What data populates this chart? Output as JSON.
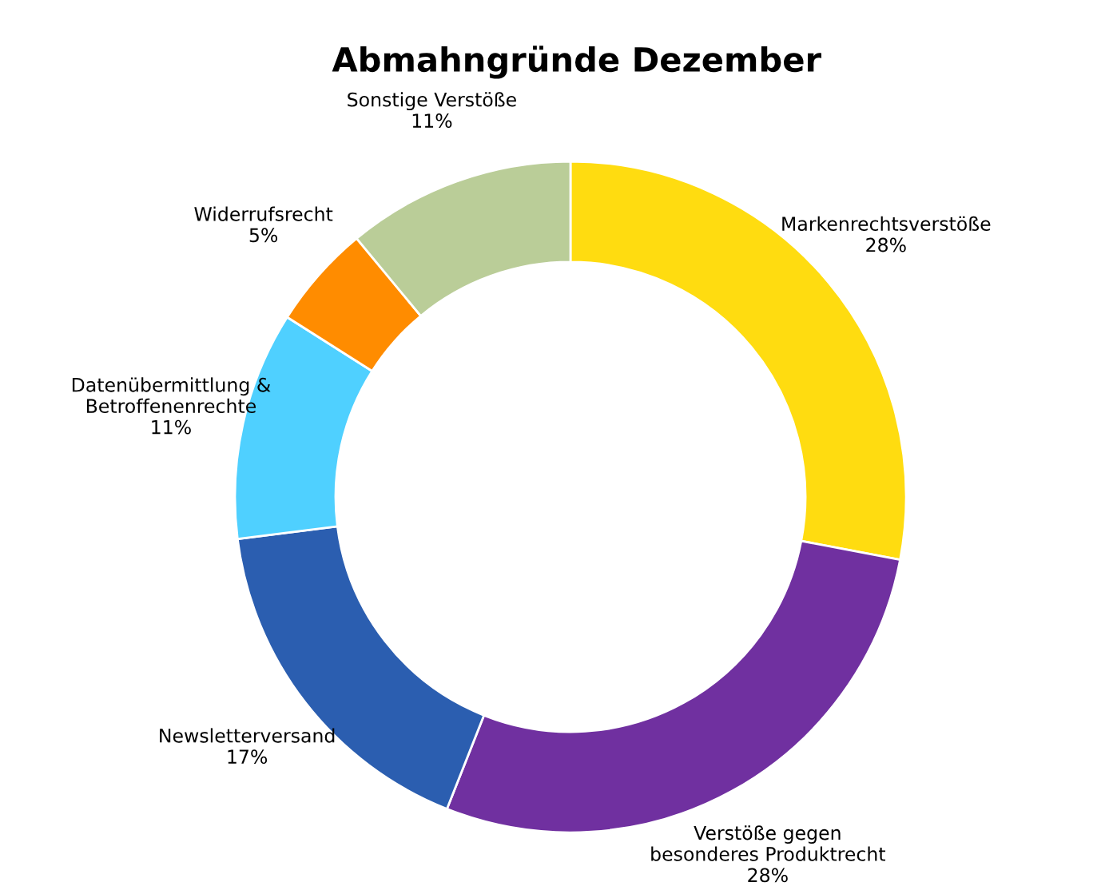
{
  "chart_data": {
    "type": "donut",
    "title": "Abmahngründe Dezember",
    "categories": [
      "Markenrechtsverstöße",
      "Verstöße gegen\nbesonderes Produktrecht",
      "Newsletterversand",
      "Datenübermittlung &\nBetroffenenrechte",
      "Widerrufsrecht",
      "Sonstige Verstöße"
    ],
    "values": [
      28,
      28,
      17,
      11,
      5,
      11
    ],
    "value_labels": [
      "28%",
      "28%",
      "17%",
      "11%",
      "5%",
      "11%"
    ],
    "colors": [
      "#ffdc10",
      "#7030a0",
      "#2b5eb0",
      "#4fd0ff",
      "#ff8c00",
      "#bacd98"
    ],
    "legend": false
  }
}
